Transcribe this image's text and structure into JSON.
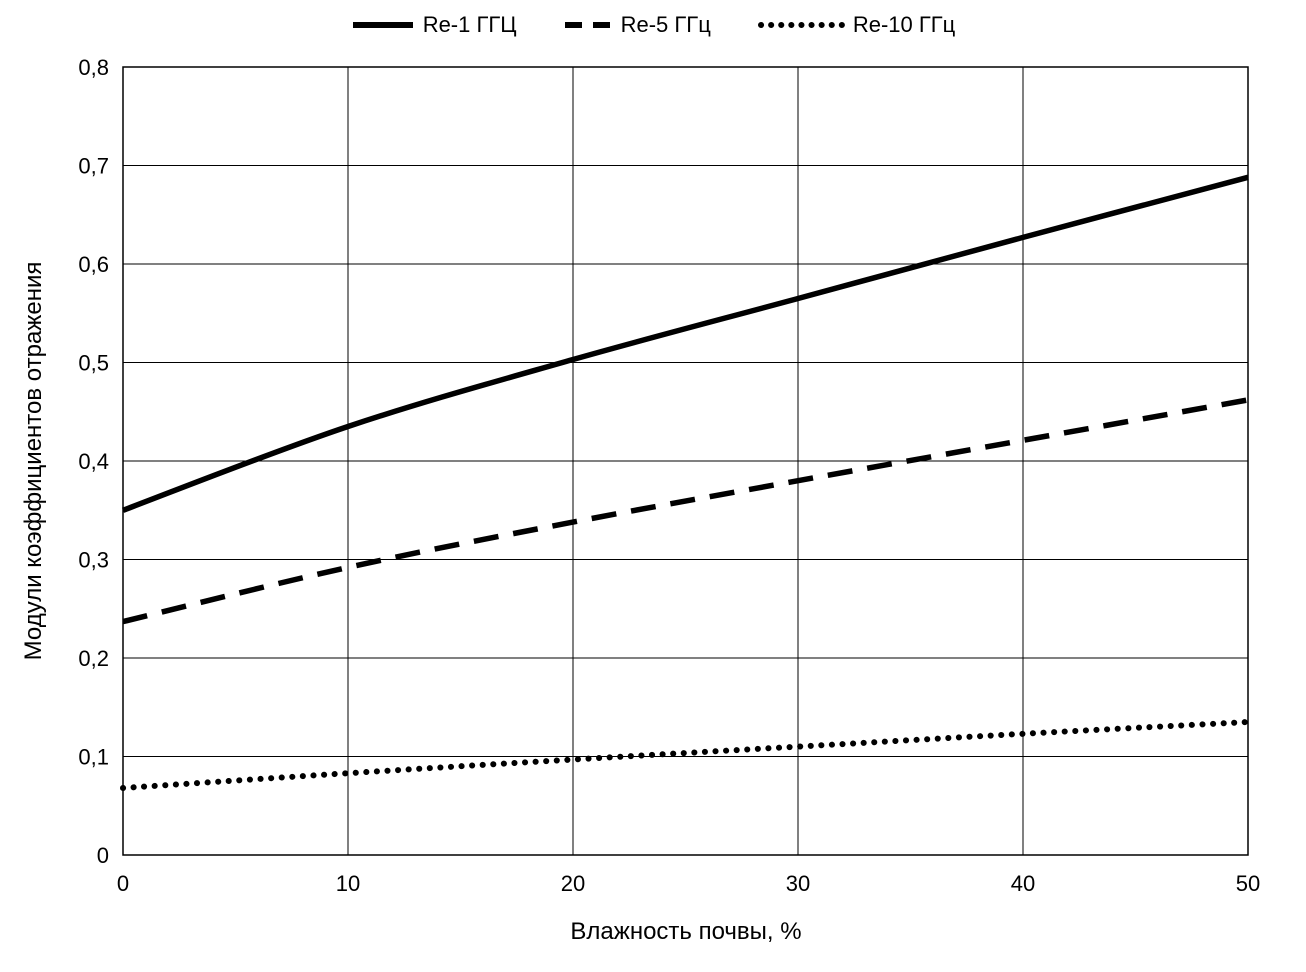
{
  "chart_data": {
    "type": "line",
    "title": "",
    "xlabel": "Влажность почвы, %",
    "ylabel": "Модули коэффициентов отражения",
    "legend_position": "top",
    "grid": true,
    "xlim": [
      0,
      50
    ],
    "ylim": [
      0,
      0.8
    ],
    "x": [
      0,
      10,
      20,
      30,
      40,
      50
    ],
    "x_ticks": [
      {
        "value": 0,
        "label": "0"
      },
      {
        "value": 10,
        "label": "10"
      },
      {
        "value": 20,
        "label": "20"
      },
      {
        "value": 30,
        "label": "30"
      },
      {
        "value": 40,
        "label": "40"
      },
      {
        "value": 50,
        "label": "50"
      }
    ],
    "y_ticks": [
      {
        "value": 0,
        "label": "0"
      },
      {
        "value": 0.1,
        "label": "0,1"
      },
      {
        "value": 0.2,
        "label": "0,2"
      },
      {
        "value": 0.3,
        "label": "0,3"
      },
      {
        "value": 0.4,
        "label": "0,4"
      },
      {
        "value": 0.5,
        "label": "0,5"
      },
      {
        "value": 0.6,
        "label": "0,6"
      },
      {
        "value": 0.7,
        "label": "0,7"
      },
      {
        "value": 0.8,
        "label": "0,8"
      }
    ],
    "series": [
      {
        "name": "Re-1 ГГЦ",
        "style": "solid",
        "values": [
          0.35,
          0.435,
          0.503,
          0.565,
          0.627,
          0.688
        ]
      },
      {
        "name": "Re-5 ГГц",
        "style": "dashed",
        "values": [
          0.237,
          0.292,
          0.338,
          0.38,
          0.421,
          0.462
        ]
      },
      {
        "name": "Re-10 ГГц",
        "style": "dotted",
        "values": [
          0.068,
          0.083,
          0.097,
          0.11,
          0.123,
          0.135
        ]
      }
    ]
  }
}
